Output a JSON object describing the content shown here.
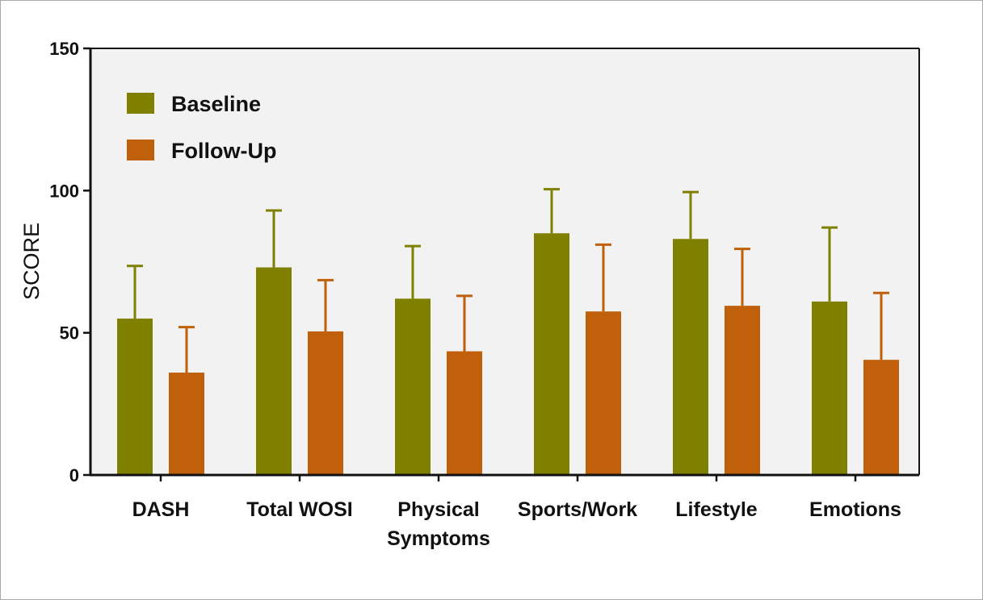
{
  "chart_data": {
    "type": "bar",
    "title": "",
    "xlabel": "",
    "ylabel": "SCORE",
    "ylim": [
      0,
      150
    ],
    "yticks": [
      0,
      50,
      100,
      150
    ],
    "grid": false,
    "legend_position": "top-left",
    "categories": [
      [
        "DASH"
      ],
      [
        "Total WOSI"
      ],
      [
        "Physical",
        "Symptoms"
      ],
      [
        "Sports/Work"
      ],
      [
        "Lifestyle"
      ],
      [
        "Emotions"
      ]
    ],
    "series": [
      {
        "name": "Baseline",
        "color": "#808000",
        "values": [
          55,
          73,
          62,
          85,
          83,
          61
        ],
        "error_upper": [
          73.5,
          93,
          80.5,
          100.5,
          99.5,
          87
        ]
      },
      {
        "name": "Follow-Up",
        "color": "#C0600A",
        "values": [
          36,
          50.5,
          43.5,
          57.5,
          59.5,
          40.5
        ],
        "error_upper": [
          52,
          68.5,
          63,
          81,
          79.5,
          64
        ]
      }
    ],
    "plot_background": "#F2F2F2"
  }
}
